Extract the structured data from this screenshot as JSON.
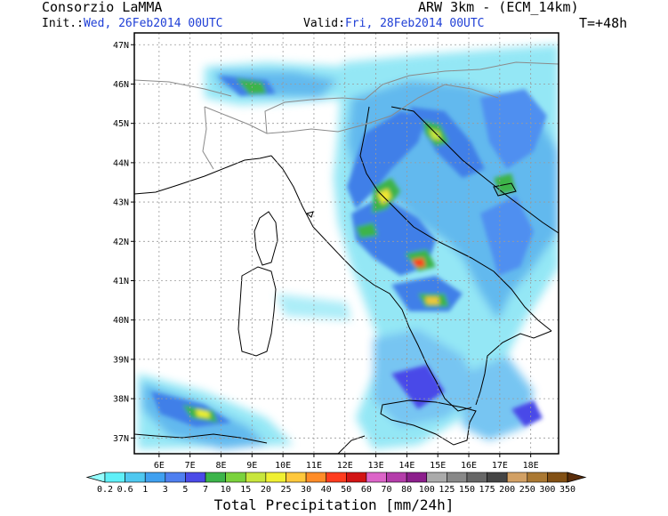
{
  "header": {
    "producer": "Consorzio LaMMA",
    "model": "ARW 3km - (ECM_14km)",
    "init_label": "Init.:",
    "init_value": "Wed, 26Feb2014 00UTC",
    "valid_label": "Valid:",
    "valid_value": "Fri, 28Feb2014 00UTC",
    "forecast_step": "T=+48h"
  },
  "map": {
    "lon_range": [
      5.2,
      18.9
    ],
    "lat_range": [
      36.6,
      47.3
    ],
    "lon_ticks": [
      "6E",
      "7E",
      "8E",
      "9E",
      "10E",
      "11E",
      "12E",
      "13E",
      "14E",
      "15E",
      "16E",
      "17E",
      "18E"
    ],
    "lat_ticks": [
      "37N",
      "38N",
      "39N",
      "40N",
      "41N",
      "42N",
      "43N",
      "44N",
      "45N",
      "46N",
      "47N"
    ],
    "grid": "dotted",
    "border_color": "#000000",
    "coast_color": "#000000",
    "country_border_color": "#9a9a9a"
  },
  "colorbar": {
    "title": "Total Precipitation [mm/24h]",
    "levels": [
      "0.2",
      "0.6",
      "1",
      "3",
      "5",
      "7",
      "10",
      "15",
      "20",
      "25",
      "30",
      "40",
      "50",
      "60",
      "70",
      "80",
      "100",
      "125",
      "150",
      "175",
      "200",
      "250",
      "300",
      "350"
    ],
    "colors": [
      "#96ffff",
      "#5ff0f8",
      "#4fc8f0",
      "#3fa0f0",
      "#4f7ff0",
      "#4a4ae8",
      "#3cb44a",
      "#7ad23c",
      "#c8e63c",
      "#f0f032",
      "#ffc83c",
      "#ff8c28",
      "#ff3c1e",
      "#d21414",
      "#dc64c8",
      "#b43caa",
      "#8c1e8c",
      "#aaaaaa",
      "#888888",
      "#666666",
      "#444444",
      "#d2a064",
      "#aa7832",
      "#825014",
      "#5a2d0a"
    ]
  },
  "icons": {
    "left_arrow": "arrow-left-triangle",
    "right_arrow": "arrow-right-triangle"
  }
}
